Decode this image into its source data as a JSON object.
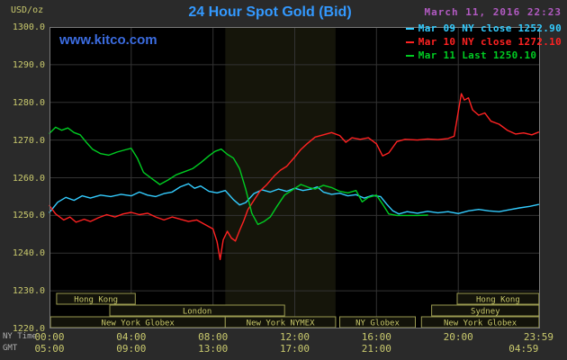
{
  "header": {
    "units_label": "USD/oz",
    "title": "24 Hour Spot Gold (Bid)",
    "datetime": "March 11, 2016 22:23",
    "watermark": "www.kitco.com"
  },
  "legend": [
    {
      "id": "mar-09",
      "label": "Mar 09 NY close 1252.90",
      "color": "#33ccff"
    },
    {
      "id": "mar-10",
      "label": "Mar 10 NY close 1272.10",
      "color": "#ff2222"
    },
    {
      "id": "mar-11",
      "label": "Mar 11 Last 1250.10",
      "color": "#00cc22"
    }
  ],
  "axes": {
    "ny_row_label": "NY Time",
    "gmt_row_label": "GMT",
    "y_ticks": [
      "1300.0",
      "1290.0",
      "1280.0",
      "1270.0",
      "1260.0",
      "1250.0",
      "1240.0",
      "1230.0",
      "1220.0"
    ],
    "ny_ticks": [
      {
        "label": "00:00",
        "hour": 0
      },
      {
        "label": "04:00",
        "hour": 4
      },
      {
        "label": "08:00",
        "hour": 8
      },
      {
        "label": "12:00",
        "hour": 12
      },
      {
        "label": "16:00",
        "hour": 16
      },
      {
        "label": "20:00",
        "hour": 20
      },
      {
        "label": "23:59",
        "hour": 23.93
      }
    ],
    "gmt_ticks": [
      {
        "label": "05:00",
        "hour": 0
      },
      {
        "label": "09:00",
        "hour": 4
      },
      {
        "label": "13:00",
        "hour": 8
      },
      {
        "label": "17:00",
        "hour": 12
      },
      {
        "label": "21:00",
        "hour": 16
      },
      {
        "label": "04:59",
        "hour": 23.2
      }
    ]
  },
  "sessions": [
    {
      "label": "Hong Kong",
      "row": 1,
      "start": 0.35,
      "end": 4.2
    },
    {
      "label": "Hong Kong",
      "row": 1,
      "start": 19.95,
      "end": 23.95
    },
    {
      "label": "London",
      "row": 2,
      "start": 2.95,
      "end": 11.5
    },
    {
      "label": "Sydney",
      "row": 2,
      "start": 18.7,
      "end": 23.95
    },
    {
      "label": "New York Globex",
      "row": 3,
      "start": 0.05,
      "end": 8.6
    },
    {
      "label": "New York NYMEX",
      "row": 3,
      "start": 8.6,
      "end": 14.0
    },
    {
      "label": "NY Globex",
      "row": 3,
      "start": 14.2,
      "end": 17.9
    },
    {
      "label": "New York Globex",
      "row": 3,
      "start": 18.2,
      "end": 23.95
    }
  ],
  "colors": {
    "background": "#2a2a2a",
    "plot_bg": "#000000",
    "band": "#15150a",
    "grid": "#333333",
    "plot_border": "#787878",
    "session_fill": "#13130a",
    "session_border": "#9a9a50",
    "session_text": "#c8c86a",
    "axis_text": "#c9c96d",
    "title": "#3399ff",
    "date": "#b25ac2",
    "watermark": "#3b6ce0"
  },
  "chart_data": {
    "type": "line",
    "title": "24 Hour Spot Gold (Bid)",
    "xlabel": "NY Time (hours 00:00-23:59)",
    "ylabel": "USD/oz",
    "xlim": [
      0,
      24
    ],
    "ylim": [
      1220,
      1300
    ],
    "y_tick_step": 10,
    "x_tick_step_hours": 4,
    "grid": true,
    "legend_position": "top-right",
    "highlight_band_hours": [
      8.6,
      14.0
    ],
    "series": [
      {
        "id": "mar-09",
        "name": "Mar 09 NY close 1252.90",
        "color": "#33ccff",
        "close": 1252.9,
        "points": [
          [
            0,
            1250.8
          ],
          [
            0.4,
            1253.5
          ],
          [
            0.8,
            1254.8
          ],
          [
            1.2,
            1254.0
          ],
          [
            1.6,
            1255.2
          ],
          [
            2.0,
            1254.6
          ],
          [
            2.5,
            1255.4
          ],
          [
            3.0,
            1255.0
          ],
          [
            3.5,
            1255.6
          ],
          [
            4.0,
            1255.2
          ],
          [
            4.4,
            1256.2
          ],
          [
            4.8,
            1255.4
          ],
          [
            5.2,
            1255.0
          ],
          [
            5.6,
            1255.8
          ],
          [
            6.0,
            1256.2
          ],
          [
            6.4,
            1257.6
          ],
          [
            6.8,
            1258.4
          ],
          [
            7.1,
            1257.2
          ],
          [
            7.4,
            1257.8
          ],
          [
            7.8,
            1256.4
          ],
          [
            8.2,
            1256.0
          ],
          [
            8.6,
            1256.6
          ],
          [
            9.0,
            1254.2
          ],
          [
            9.3,
            1252.8
          ],
          [
            9.6,
            1253.4
          ],
          [
            10.0,
            1255.8
          ],
          [
            10.4,
            1256.8
          ],
          [
            10.8,
            1256.2
          ],
          [
            11.2,
            1257.0
          ],
          [
            11.6,
            1256.4
          ],
          [
            12.0,
            1257.2
          ],
          [
            12.4,
            1256.6
          ],
          [
            12.8,
            1257.0
          ],
          [
            13.1,
            1257.6
          ],
          [
            13.4,
            1256.2
          ],
          [
            13.8,
            1255.6
          ],
          [
            14.2,
            1255.9
          ],
          [
            14.6,
            1255.2
          ],
          [
            15.0,
            1255.5
          ],
          [
            15.4,
            1254.6
          ],
          [
            15.8,
            1255.3
          ],
          [
            16.2,
            1255.0
          ],
          [
            16.5,
            1253.0
          ],
          [
            16.8,
            1251.2
          ],
          [
            17.1,
            1250.4
          ],
          [
            17.5,
            1251.0
          ],
          [
            18.0,
            1250.6
          ],
          [
            18.5,
            1251.1
          ],
          [
            19.0,
            1250.7
          ],
          [
            19.5,
            1251.0
          ],
          [
            20.0,
            1250.5
          ],
          [
            20.5,
            1251.2
          ],
          [
            21.0,
            1251.6
          ],
          [
            21.5,
            1251.2
          ],
          [
            22.0,
            1251.0
          ],
          [
            22.5,
            1251.5
          ],
          [
            23.0,
            1252.0
          ],
          [
            23.5,
            1252.4
          ],
          [
            23.93,
            1252.9
          ]
        ]
      },
      {
        "id": "mar-10",
        "name": "Mar 10 NY close 1272.10",
        "color": "#ff2222",
        "close": 1272.1,
        "points": [
          [
            0,
            1252.6
          ],
          [
            0.3,
            1250.4
          ],
          [
            0.7,
            1248.8
          ],
          [
            1.0,
            1249.6
          ],
          [
            1.3,
            1248.2
          ],
          [
            1.7,
            1249.0
          ],
          [
            2.0,
            1248.4
          ],
          [
            2.4,
            1249.4
          ],
          [
            2.8,
            1250.2
          ],
          [
            3.2,
            1249.6
          ],
          [
            3.6,
            1250.4
          ],
          [
            4.0,
            1250.8
          ],
          [
            4.4,
            1250.2
          ],
          [
            4.8,
            1250.6
          ],
          [
            5.2,
            1249.6
          ],
          [
            5.6,
            1248.8
          ],
          [
            6.0,
            1249.6
          ],
          [
            6.4,
            1249.0
          ],
          [
            6.8,
            1248.4
          ],
          [
            7.2,
            1248.8
          ],
          [
            7.6,
            1247.6
          ],
          [
            8.0,
            1246.4
          ],
          [
            8.2,
            1243.0
          ],
          [
            8.35,
            1238.3
          ],
          [
            8.5,
            1243.5
          ],
          [
            8.7,
            1245.8
          ],
          [
            8.9,
            1244.0
          ],
          [
            9.1,
            1243.2
          ],
          [
            9.3,
            1246.0
          ],
          [
            9.5,
            1248.5
          ],
          [
            9.7,
            1251.5
          ],
          [
            10.0,
            1254.0
          ],
          [
            10.3,
            1256.5
          ],
          [
            10.6,
            1258.0
          ],
          [
            11.0,
            1260.5
          ],
          [
            11.3,
            1262.0
          ],
          [
            11.6,
            1263.0
          ],
          [
            12.0,
            1265.5
          ],
          [
            12.3,
            1267.5
          ],
          [
            12.6,
            1269.0
          ],
          [
            13.0,
            1270.8
          ],
          [
            13.4,
            1271.4
          ],
          [
            13.8,
            1272.0
          ],
          [
            14.2,
            1271.2
          ],
          [
            14.5,
            1269.4
          ],
          [
            14.8,
            1270.6
          ],
          [
            15.2,
            1270.2
          ],
          [
            15.6,
            1270.6
          ],
          [
            16.0,
            1269.0
          ],
          [
            16.3,
            1265.8
          ],
          [
            16.6,
            1266.6
          ],
          [
            17.0,
            1269.6
          ],
          [
            17.4,
            1270.2
          ],
          [
            18.0,
            1270.0
          ],
          [
            18.5,
            1270.3
          ],
          [
            19.0,
            1270.1
          ],
          [
            19.5,
            1270.4
          ],
          [
            19.8,
            1271.0
          ],
          [
            20.0,
            1277.5
          ],
          [
            20.15,
            1282.3
          ],
          [
            20.3,
            1280.6
          ],
          [
            20.5,
            1281.2
          ],
          [
            20.7,
            1278.0
          ],
          [
            21.0,
            1276.6
          ],
          [
            21.3,
            1277.2
          ],
          [
            21.6,
            1275.0
          ],
          [
            22.0,
            1274.2
          ],
          [
            22.4,
            1272.6
          ],
          [
            22.8,
            1271.6
          ],
          [
            23.2,
            1271.9
          ],
          [
            23.6,
            1271.4
          ],
          [
            23.93,
            1272.1
          ]
        ]
      },
      {
        "id": "mar-11",
        "name": "Mar 11 Last 1250.10",
        "color": "#00cc22",
        "last": 1250.1,
        "points": [
          [
            0,
            1271.8
          ],
          [
            0.3,
            1273.4
          ],
          [
            0.6,
            1272.6
          ],
          [
            0.9,
            1273.2
          ],
          [
            1.2,
            1272.0
          ],
          [
            1.5,
            1271.4
          ],
          [
            1.8,
            1269.4
          ],
          [
            2.1,
            1267.6
          ],
          [
            2.5,
            1266.4
          ],
          [
            2.9,
            1266.0
          ],
          [
            3.3,
            1266.8
          ],
          [
            3.7,
            1267.4
          ],
          [
            4.0,
            1267.8
          ],
          [
            4.3,
            1265.2
          ],
          [
            4.6,
            1261.4
          ],
          [
            5.0,
            1259.8
          ],
          [
            5.4,
            1258.2
          ],
          [
            5.8,
            1259.4
          ],
          [
            6.2,
            1260.8
          ],
          [
            6.6,
            1261.6
          ],
          [
            7.0,
            1262.4
          ],
          [
            7.4,
            1264.0
          ],
          [
            7.8,
            1265.8
          ],
          [
            8.1,
            1267.0
          ],
          [
            8.4,
            1267.6
          ],
          [
            8.7,
            1266.2
          ],
          [
            9.0,
            1265.2
          ],
          [
            9.3,
            1262.4
          ],
          [
            9.6,
            1257.0
          ],
          [
            9.9,
            1250.6
          ],
          [
            10.2,
            1247.6
          ],
          [
            10.5,
            1248.4
          ],
          [
            10.8,
            1249.6
          ],
          [
            11.1,
            1252.2
          ],
          [
            11.5,
            1255.4
          ],
          [
            11.9,
            1256.8
          ],
          [
            12.3,
            1258.2
          ],
          [
            12.7,
            1257.4
          ],
          [
            13.0,
            1257.0
          ],
          [
            13.4,
            1258.0
          ],
          [
            13.8,
            1257.4
          ],
          [
            14.2,
            1256.4
          ],
          [
            14.6,
            1256.0
          ],
          [
            15.0,
            1256.6
          ],
          [
            15.3,
            1253.6
          ],
          [
            15.6,
            1254.8
          ],
          [
            16.0,
            1255.4
          ],
          [
            16.3,
            1253.0
          ],
          [
            16.6,
            1250.4
          ],
          [
            17.0,
            1250.0
          ],
          [
            17.5,
            1250.0
          ],
          [
            18.0,
            1250.0
          ],
          [
            18.5,
            1250.1
          ]
        ]
      }
    ]
  }
}
